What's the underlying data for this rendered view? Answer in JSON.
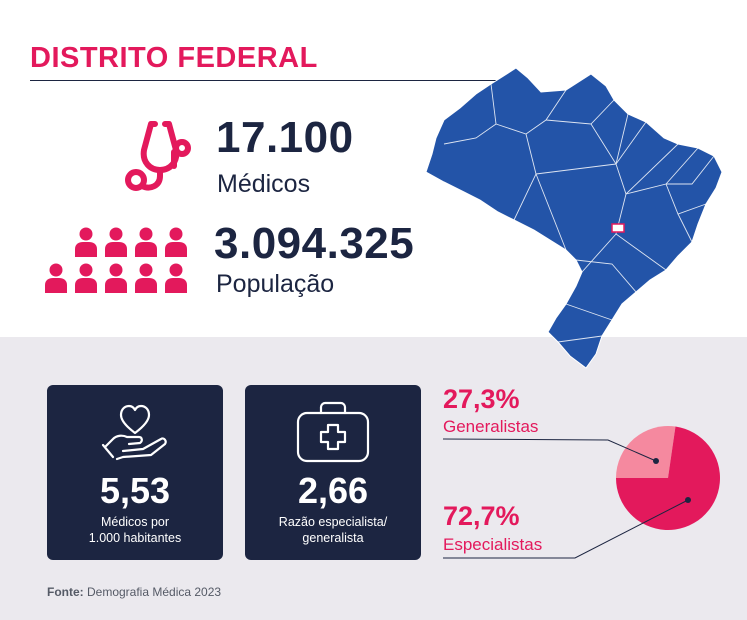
{
  "header": {
    "title": "DISTRITO FEDERAL"
  },
  "stats": {
    "doctors_value": "17.100",
    "doctors_label": "Médicos",
    "population_value": "3.094.325",
    "population_label": "População"
  },
  "cards": [
    {
      "value": "5,53",
      "label_line1": "Médicos por",
      "label_line2": "1.000 habitantes",
      "icon": "heart-hand-icon"
    },
    {
      "value": "2,66",
      "label_line1": "Razão especialista/",
      "label_line2": "generalista",
      "icon": "medical-kit-icon"
    }
  ],
  "chart_data": {
    "type": "pie",
    "slices": [
      {
        "label": "Generalistas",
        "value": 27.3,
        "display": "27,3%",
        "color": "#f5899f"
      },
      {
        "label": "Especialistas",
        "value": 72.7,
        "display": "72,7%",
        "color": "#e3195c"
      }
    ]
  },
  "source": {
    "prefix": "Fonte:",
    "text": " Demografia Médica 2023"
  },
  "colors": {
    "accent": "#e3195c",
    "navy": "#1c2541",
    "map": "#2354a8",
    "band": "#ebe9ee"
  }
}
